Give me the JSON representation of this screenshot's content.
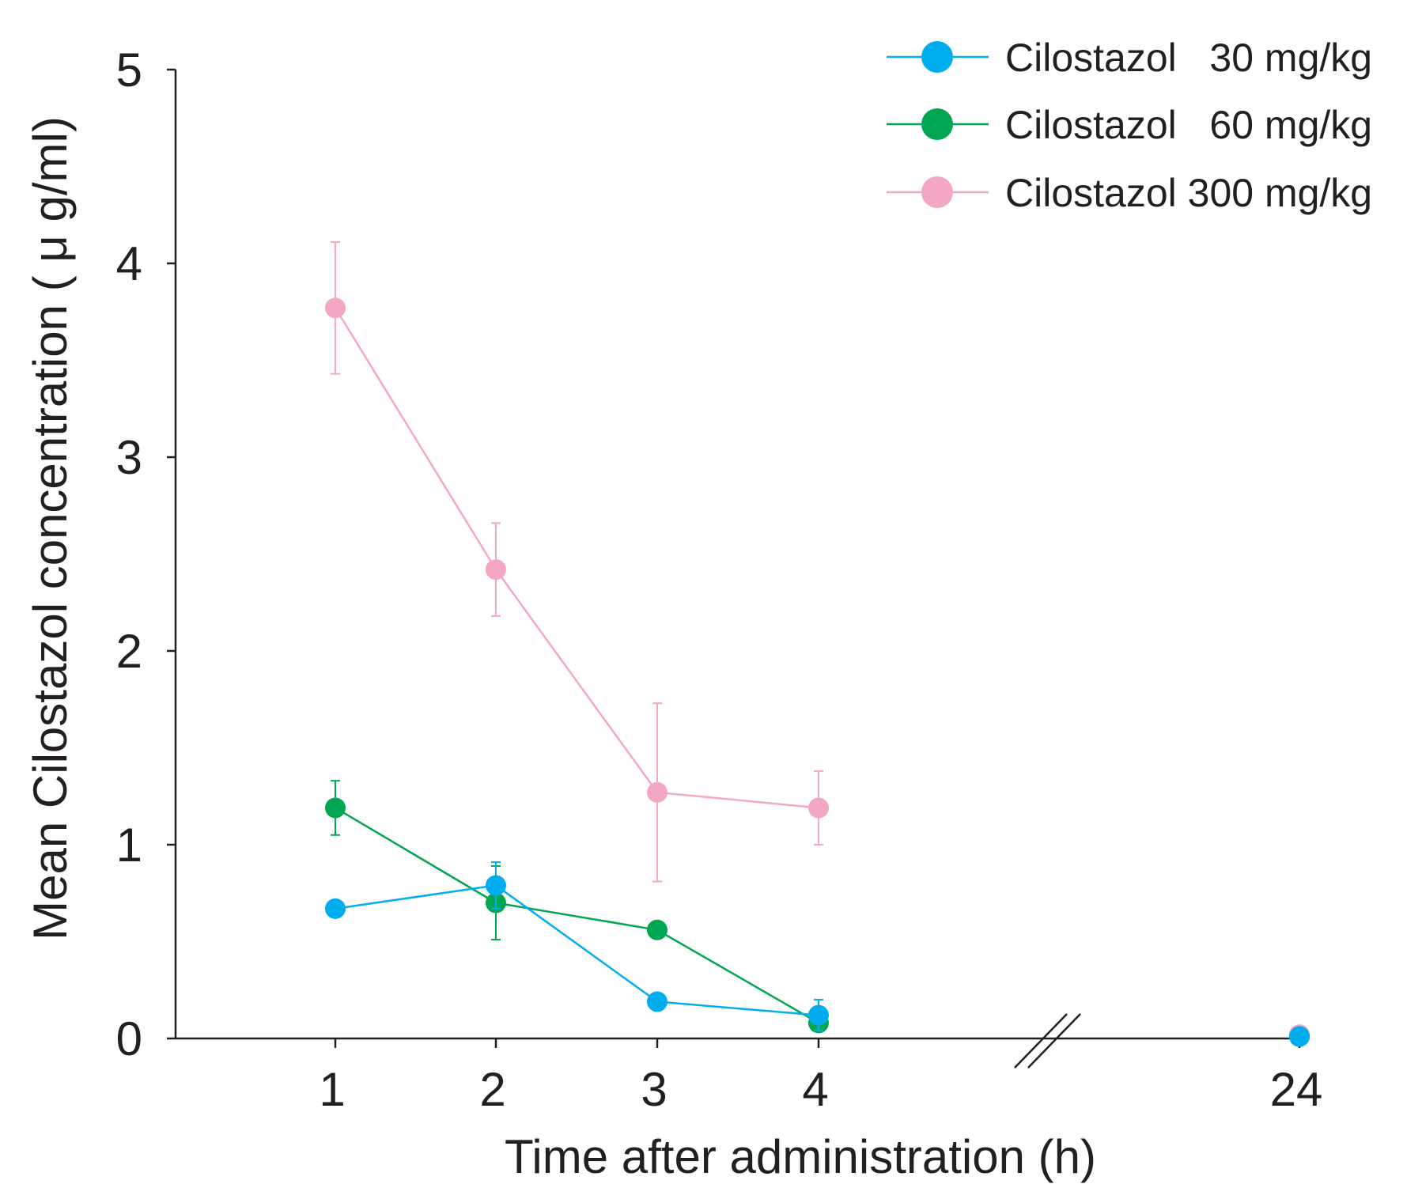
{
  "chart_data": {
    "type": "line",
    "xlabel": "Time after administration (h)",
    "ylabel": "Mean Cilostazol concentration ( μ g/ml)",
    "ylim": [
      0,
      5
    ],
    "x": [
      1,
      2,
      3,
      4,
      24
    ],
    "x_tick_labels": [
      "1",
      "2",
      "3",
      "4",
      "24"
    ],
    "y_ticks": [
      0,
      1,
      2,
      3,
      4,
      5
    ],
    "y_tick_labels": [
      "0",
      "1",
      "2",
      "3",
      "4",
      "5"
    ],
    "x_axis_break": "between 4 and 24",
    "legend_position": "top-right",
    "grid": false,
    "series": [
      {
        "name": "Cilostazol   30 mg/kg",
        "color": "#00aeef",
        "x": [
          1,
          2,
          3,
          4,
          24
        ],
        "values": [
          0.67,
          0.79,
          0.19,
          0.12,
          0.01
        ],
        "error": [
          0,
          0.12,
          0,
          0.08,
          0
        ]
      },
      {
        "name": "Cilostazol   60 mg/kg",
        "color": "#00a651",
        "x": [
          1,
          2,
          3,
          4,
          24
        ],
        "values": [
          1.19,
          0.7,
          0.56,
          0.08,
          0.01
        ],
        "error": [
          0.14,
          0.19,
          0,
          0,
          0
        ]
      },
      {
        "name": "Cilostazol 300 mg/kg",
        "color": "#f4a7c4",
        "x": [
          1,
          2,
          3,
          4,
          24
        ],
        "values": [
          3.77,
          2.42,
          1.27,
          1.19,
          0.02
        ],
        "error": [
          0.34,
          0.24,
          0.46,
          0.19,
          0
        ]
      }
    ]
  }
}
